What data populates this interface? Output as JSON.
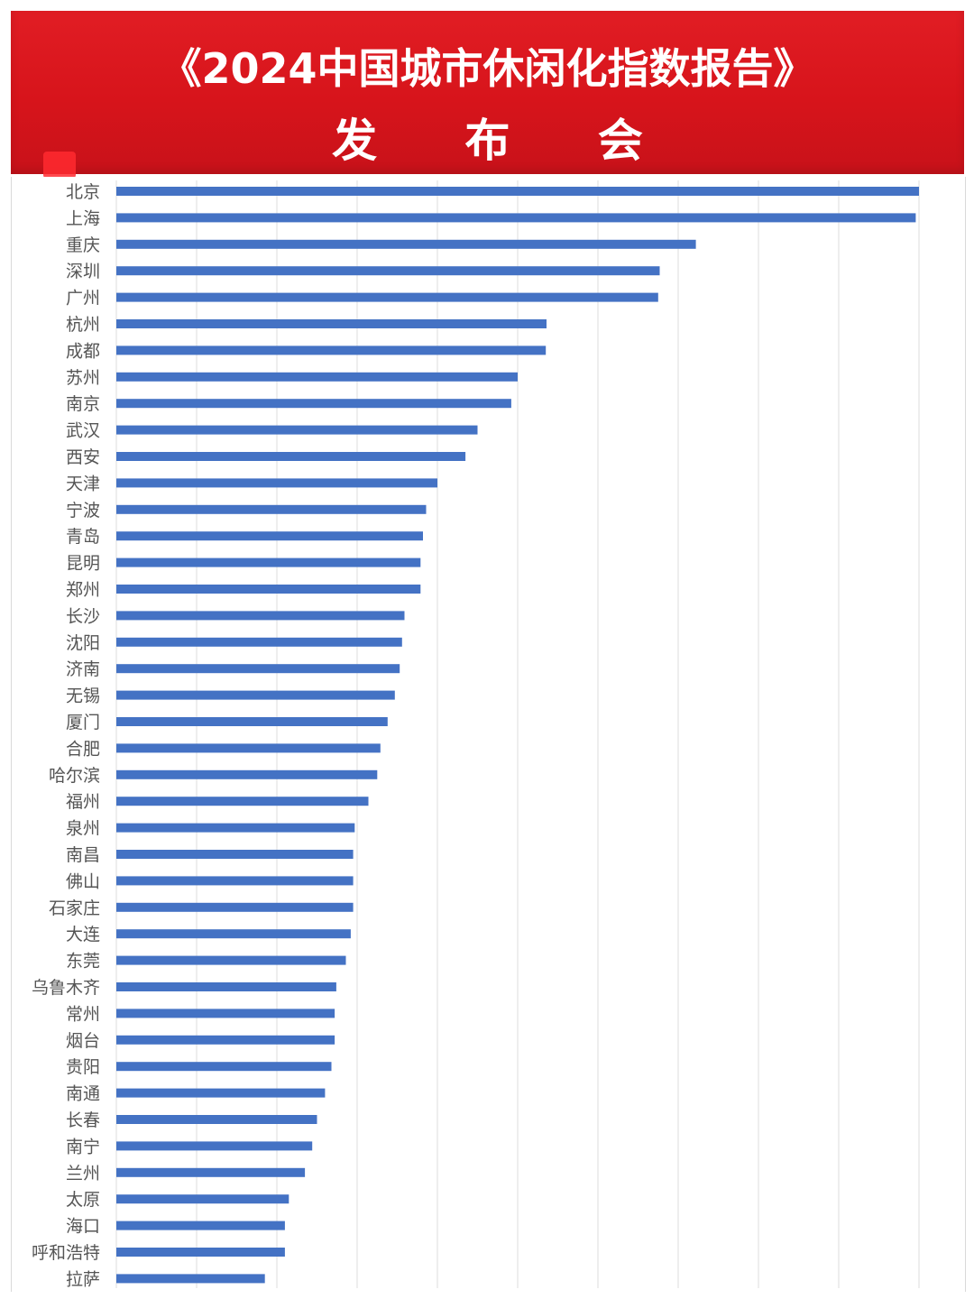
{
  "header": {
    "title": "《2024中国城市休闲化指数报告》",
    "subtitle": "发 布 会"
  },
  "colors": {
    "banner": "#d7141b",
    "bar": "#4472c4",
    "grid": "#e3e3e3",
    "label": "#555555"
  },
  "chart_data": {
    "type": "bar",
    "orientation": "horizontal",
    "title": "",
    "xlabel": "",
    "ylabel": "",
    "grid": true,
    "legend": "none",
    "xlim": [
      0,
      1
    ],
    "categories": [
      "北京",
      "上海",
      "重庆",
      "深圳",
      "广州",
      "杭州",
      "成都",
      "苏州",
      "南京",
      "武汉",
      "西安",
      "天津",
      "宁波",
      "青岛",
      "昆明",
      "郑州",
      "长沙",
      "沈阳",
      "济南",
      "无锡",
      "厦门",
      "合肥",
      "哈尔滨",
      "福州",
      "泉州",
      "南昌",
      "佛山",
      "石家庄",
      "大连",
      "东莞",
      "乌鲁木齐",
      "常州",
      "烟台",
      "贵阳",
      "南通",
      "长春",
      "南宁",
      "兰州",
      "太原",
      "海口",
      "呼和浩特",
      "拉萨"
    ],
    "values": [
      1.0,
      0.996,
      0.722,
      0.677,
      0.675,
      0.536,
      0.535,
      0.5,
      0.492,
      0.45,
      0.435,
      0.4,
      0.386,
      0.382,
      0.379,
      0.379,
      0.359,
      0.356,
      0.353,
      0.347,
      0.338,
      0.329,
      0.325,
      0.314,
      0.297,
      0.295,
      0.295,
      0.295,
      0.292,
      0.286,
      0.274,
      0.272,
      0.272,
      0.268,
      0.26,
      0.25,
      0.244,
      0.235,
      0.215,
      0.21,
      0.21,
      0.185
    ]
  }
}
